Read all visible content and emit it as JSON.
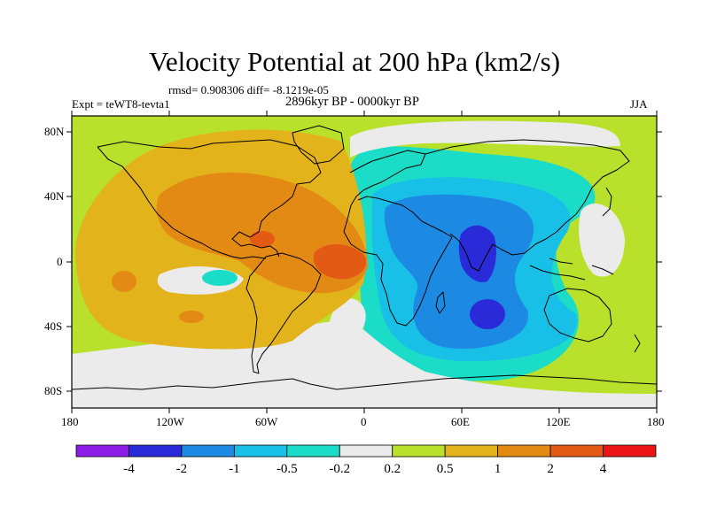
{
  "title": "Velocity Potential at 200 hPa (km2/s)",
  "stats": "rmsd= 0.908306 diff= -8.1219e-05",
  "experiment": "Expt = teWT8-tevta1",
  "period": "2896kyr BP - 0000kyr BP",
  "season": "JJA",
  "map": {
    "lon_range": [
      -180,
      180
    ],
    "lat_range": [
      -90,
      90
    ],
    "lon_ticks": [
      "180",
      "120W",
      "60W",
      "0",
      "60E",
      "120E",
      "180"
    ],
    "lat_ticks": [
      "80N",
      "40N",
      "0",
      "40S",
      "80S"
    ]
  },
  "colorbar": {
    "colors": [
      "#8c1be6",
      "#2a2ad9",
      "#1c8ae3",
      "#18c0e8",
      "#1bdcc6",
      "#ebebeb",
      "#b9e12c",
      "#e2b31b",
      "#e38a14",
      "#e35a14",
      "#ea1414"
    ],
    "labels": [
      "-4",
      "-2",
      "-1",
      "-0.5",
      "-0.2",
      "0.2",
      "0.5",
      "1",
      "2",
      "4"
    ]
  }
}
